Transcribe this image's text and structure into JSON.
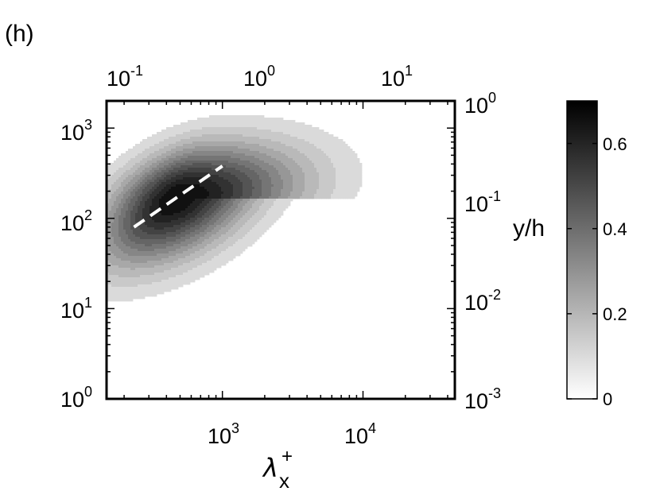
{
  "chart_data": {
    "type": "heatmap",
    "panel_label": "(h)",
    "title": "",
    "xlabel": "λ",
    "xlabel_super": "+",
    "xlabel_sub": "x",
    "ylabel_left": "",
    "ylabel_right": "y/h",
    "x_scale": "log",
    "y_scale": "log",
    "xlim": [
      150,
      45000
    ],
    "ylim": [
      1,
      2000
    ],
    "x_ticks": [
      {
        "value": 1000,
        "base": "10",
        "exp": "3"
      },
      {
        "value": 10000,
        "base": "10",
        "exp": "4"
      }
    ],
    "y_ticks": [
      {
        "value": 1,
        "base": "10",
        "exp": "0"
      },
      {
        "value": 10,
        "base": "10",
        "exp": "1"
      },
      {
        "value": 100,
        "base": "10",
        "exp": "2"
      },
      {
        "value": 1000,
        "base": "10",
        "exp": "3"
      }
    ],
    "top_axis": {
      "scale": "log",
      "ticks": [
        {
          "value": 0.1,
          "base": "10",
          "exp": "-1"
        },
        {
          "value": 1,
          "base": "10",
          "exp": "0"
        },
        {
          "value": 10,
          "base": "10",
          "exp": "1"
        }
      ]
    },
    "right_axis": {
      "scale": "log",
      "label": "y/h",
      "ticks": [
        {
          "value": 0.001,
          "base": "10",
          "exp": "-3"
        },
        {
          "value": 0.01,
          "base": "10",
          "exp": "-2"
        },
        {
          "value": 0.1,
          "base": "10",
          "exp": "-1"
        },
        {
          "value": 1,
          "base": "10",
          "exp": "0"
        }
      ]
    },
    "colorbar": {
      "range": [
        0,
        0.7
      ],
      "ticks": [
        {
          "value": 0,
          "label": "0"
        },
        {
          "value": 0.2,
          "label": "0.2"
        },
        {
          "value": 0.4,
          "label": "0.4"
        },
        {
          "value": 0.6,
          "label": "0.6"
        }
      ],
      "colormap": "gray reversed"
    },
    "field": {
      "peak_lambda": 480,
      "peak_y": 170,
      "peak_value": 0.7,
      "contour_interval": 0.05
    },
    "dashed_line": {
      "x": [
        235,
        1000
      ],
      "y": [
        80,
        380
      ],
      "color": "#ffffff"
    }
  }
}
